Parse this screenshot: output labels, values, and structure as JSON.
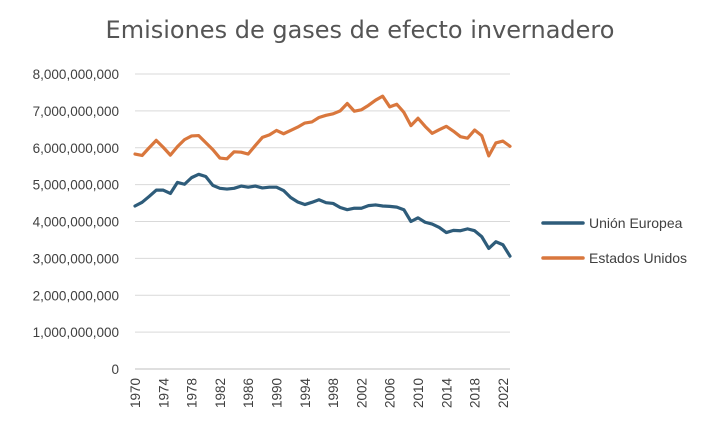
{
  "chart_data": {
    "type": "line",
    "title": "Emisiones de gases de efecto invernadero",
    "xlabel": "",
    "ylabel": "",
    "ylim": [
      0,
      8000000000
    ],
    "xlim": [
      1970,
      2023
    ],
    "grid": "horizontal",
    "legend_position": "right",
    "y_ticks": [
      "0",
      "1,000,000,000",
      "2,000,000,000",
      "3,000,000,000",
      "4,000,000,000",
      "5,000,000,000",
      "6,000,000,000",
      "7,000,000,000",
      "8,000,000,000"
    ],
    "x_ticks": [
      "1970",
      "1974",
      "1978",
      "1982",
      "1986",
      "1990",
      "1994",
      "1998",
      "2002",
      "2006",
      "2010",
      "2014",
      "2018",
      "2022"
    ],
    "x": [
      1970,
      1971,
      1972,
      1973,
      1974,
      1975,
      1976,
      1977,
      1978,
      1979,
      1980,
      1981,
      1982,
      1983,
      1984,
      1985,
      1986,
      1987,
      1988,
      1989,
      1990,
      1991,
      1992,
      1993,
      1994,
      1995,
      1996,
      1997,
      1998,
      1999,
      2000,
      2001,
      2002,
      2003,
      2004,
      2005,
      2006,
      2007,
      2008,
      2009,
      2010,
      2011,
      2012,
      2013,
      2014,
      2015,
      2016,
      2017,
      2018,
      2019,
      2020,
      2021,
      2022,
      2023
    ],
    "series": [
      {
        "name": "Unión Europea",
        "color": "#2E5C7A",
        "values": [
          4420000000,
          4520000000,
          4680000000,
          4850000000,
          4850000000,
          4760000000,
          5060000000,
          5010000000,
          5190000000,
          5280000000,
          5220000000,
          4980000000,
          4900000000,
          4880000000,
          4900000000,
          4960000000,
          4930000000,
          4960000000,
          4910000000,
          4930000000,
          4930000000,
          4840000000,
          4650000000,
          4530000000,
          4460000000,
          4520000000,
          4590000000,
          4510000000,
          4490000000,
          4380000000,
          4320000000,
          4360000000,
          4360000000,
          4430000000,
          4450000000,
          4420000000,
          4410000000,
          4390000000,
          4320000000,
          4000000000,
          4100000000,
          3980000000,
          3930000000,
          3840000000,
          3700000000,
          3760000000,
          3750000000,
          3800000000,
          3750000000,
          3590000000,
          3270000000,
          3450000000,
          3370000000,
          3060000000
        ]
      },
      {
        "name": "Estados Unidos",
        "color": "#D9773D",
        "values": [
          5830000000,
          5790000000,
          6000000000,
          6200000000,
          6010000000,
          5800000000,
          6030000000,
          6220000000,
          6320000000,
          6330000000,
          6140000000,
          5950000000,
          5720000000,
          5700000000,
          5890000000,
          5880000000,
          5830000000,
          6060000000,
          6280000000,
          6350000000,
          6470000000,
          6380000000,
          6470000000,
          6560000000,
          6670000000,
          6700000000,
          6820000000,
          6880000000,
          6920000000,
          7000000000,
          7200000000,
          6990000000,
          7030000000,
          7150000000,
          7290000000,
          7400000000,
          7110000000,
          7180000000,
          6960000000,
          6600000000,
          6800000000,
          6580000000,
          6390000000,
          6490000000,
          6580000000,
          6450000000,
          6300000000,
          6260000000,
          6480000000,
          6330000000,
          5780000000,
          6130000000,
          6180000000,
          6040000000
        ]
      }
    ]
  }
}
